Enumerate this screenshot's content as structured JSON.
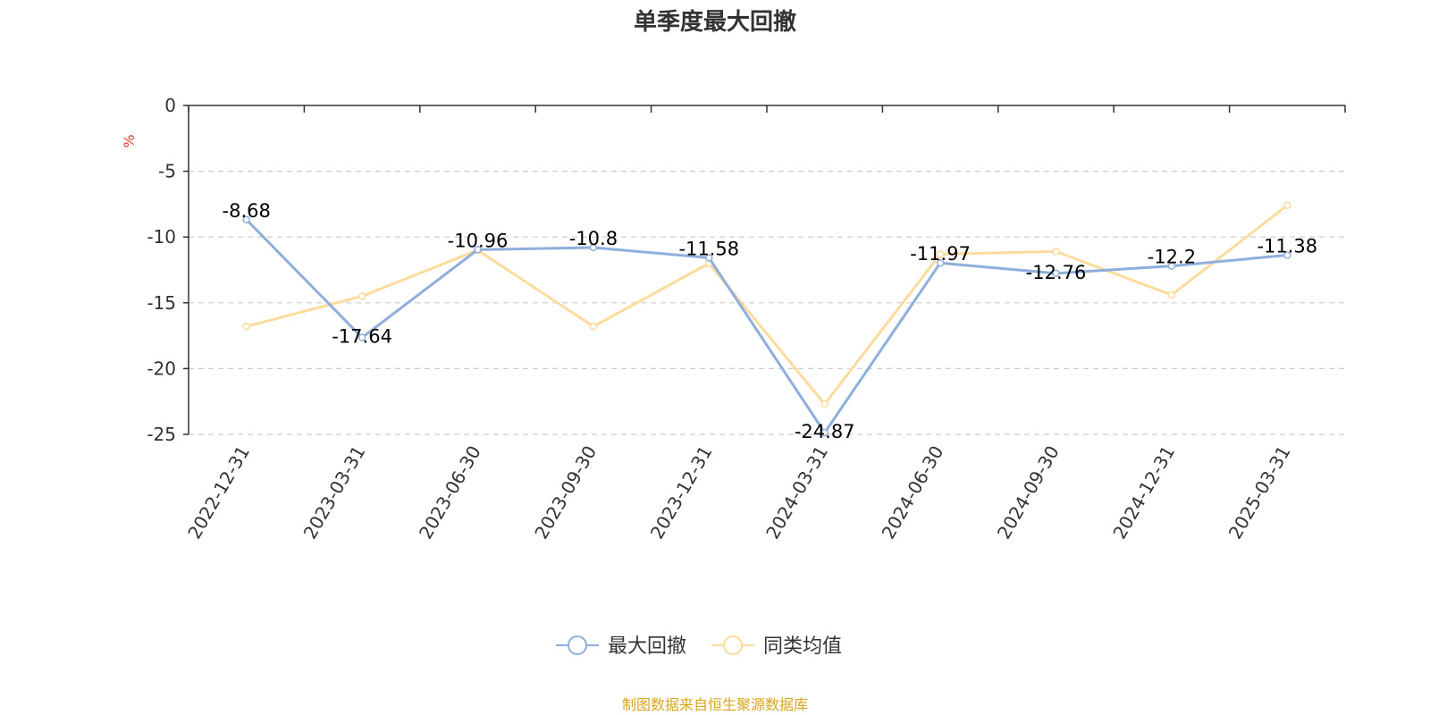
{
  "chart_data": {
    "type": "line",
    "title": "单季度最大回撤",
    "ylabel": "%",
    "ylim": [
      -25,
      0
    ],
    "yticks": [
      0,
      -5,
      -10,
      -15,
      -20,
      -25
    ],
    "grid": true,
    "legend_position": "bottom-center",
    "categories": [
      "2022-12-31",
      "2023-03-31",
      "2023-06-30",
      "2023-09-30",
      "2023-12-31",
      "2024-03-31",
      "2024-06-30",
      "2024-09-30",
      "2024-12-31",
      "2025-03-31"
    ],
    "series": [
      {
        "name": "最大回撤",
        "color": "#8eaedb",
        "values": [
          -8.68,
          -17.64,
          -10.96,
          -10.8,
          -11.58,
          -24.87,
          -11.97,
          -12.76,
          -12.2,
          -11.38
        ],
        "labels": [
          "-8.68",
          "-17.64",
          "-10.96",
          "-10.8",
          "-11.58",
          "-24.87",
          "-11.97",
          "-12.76",
          "-12.2",
          "-11.38"
        ]
      },
      {
        "name": "同类均值",
        "color": "#fddb9c",
        "values": [
          -16.8,
          -14.5,
          -11.0,
          -16.8,
          -12.0,
          -22.7,
          -11.3,
          -11.1,
          -14.4,
          -7.6
        ]
      }
    ],
    "source": "制图数据来自恒生聚源数据库"
  },
  "colors": {
    "unit_label": "#e8372d",
    "source_note": "#d9a521",
    "axis": "#333333",
    "grid": "#cccccc"
  }
}
